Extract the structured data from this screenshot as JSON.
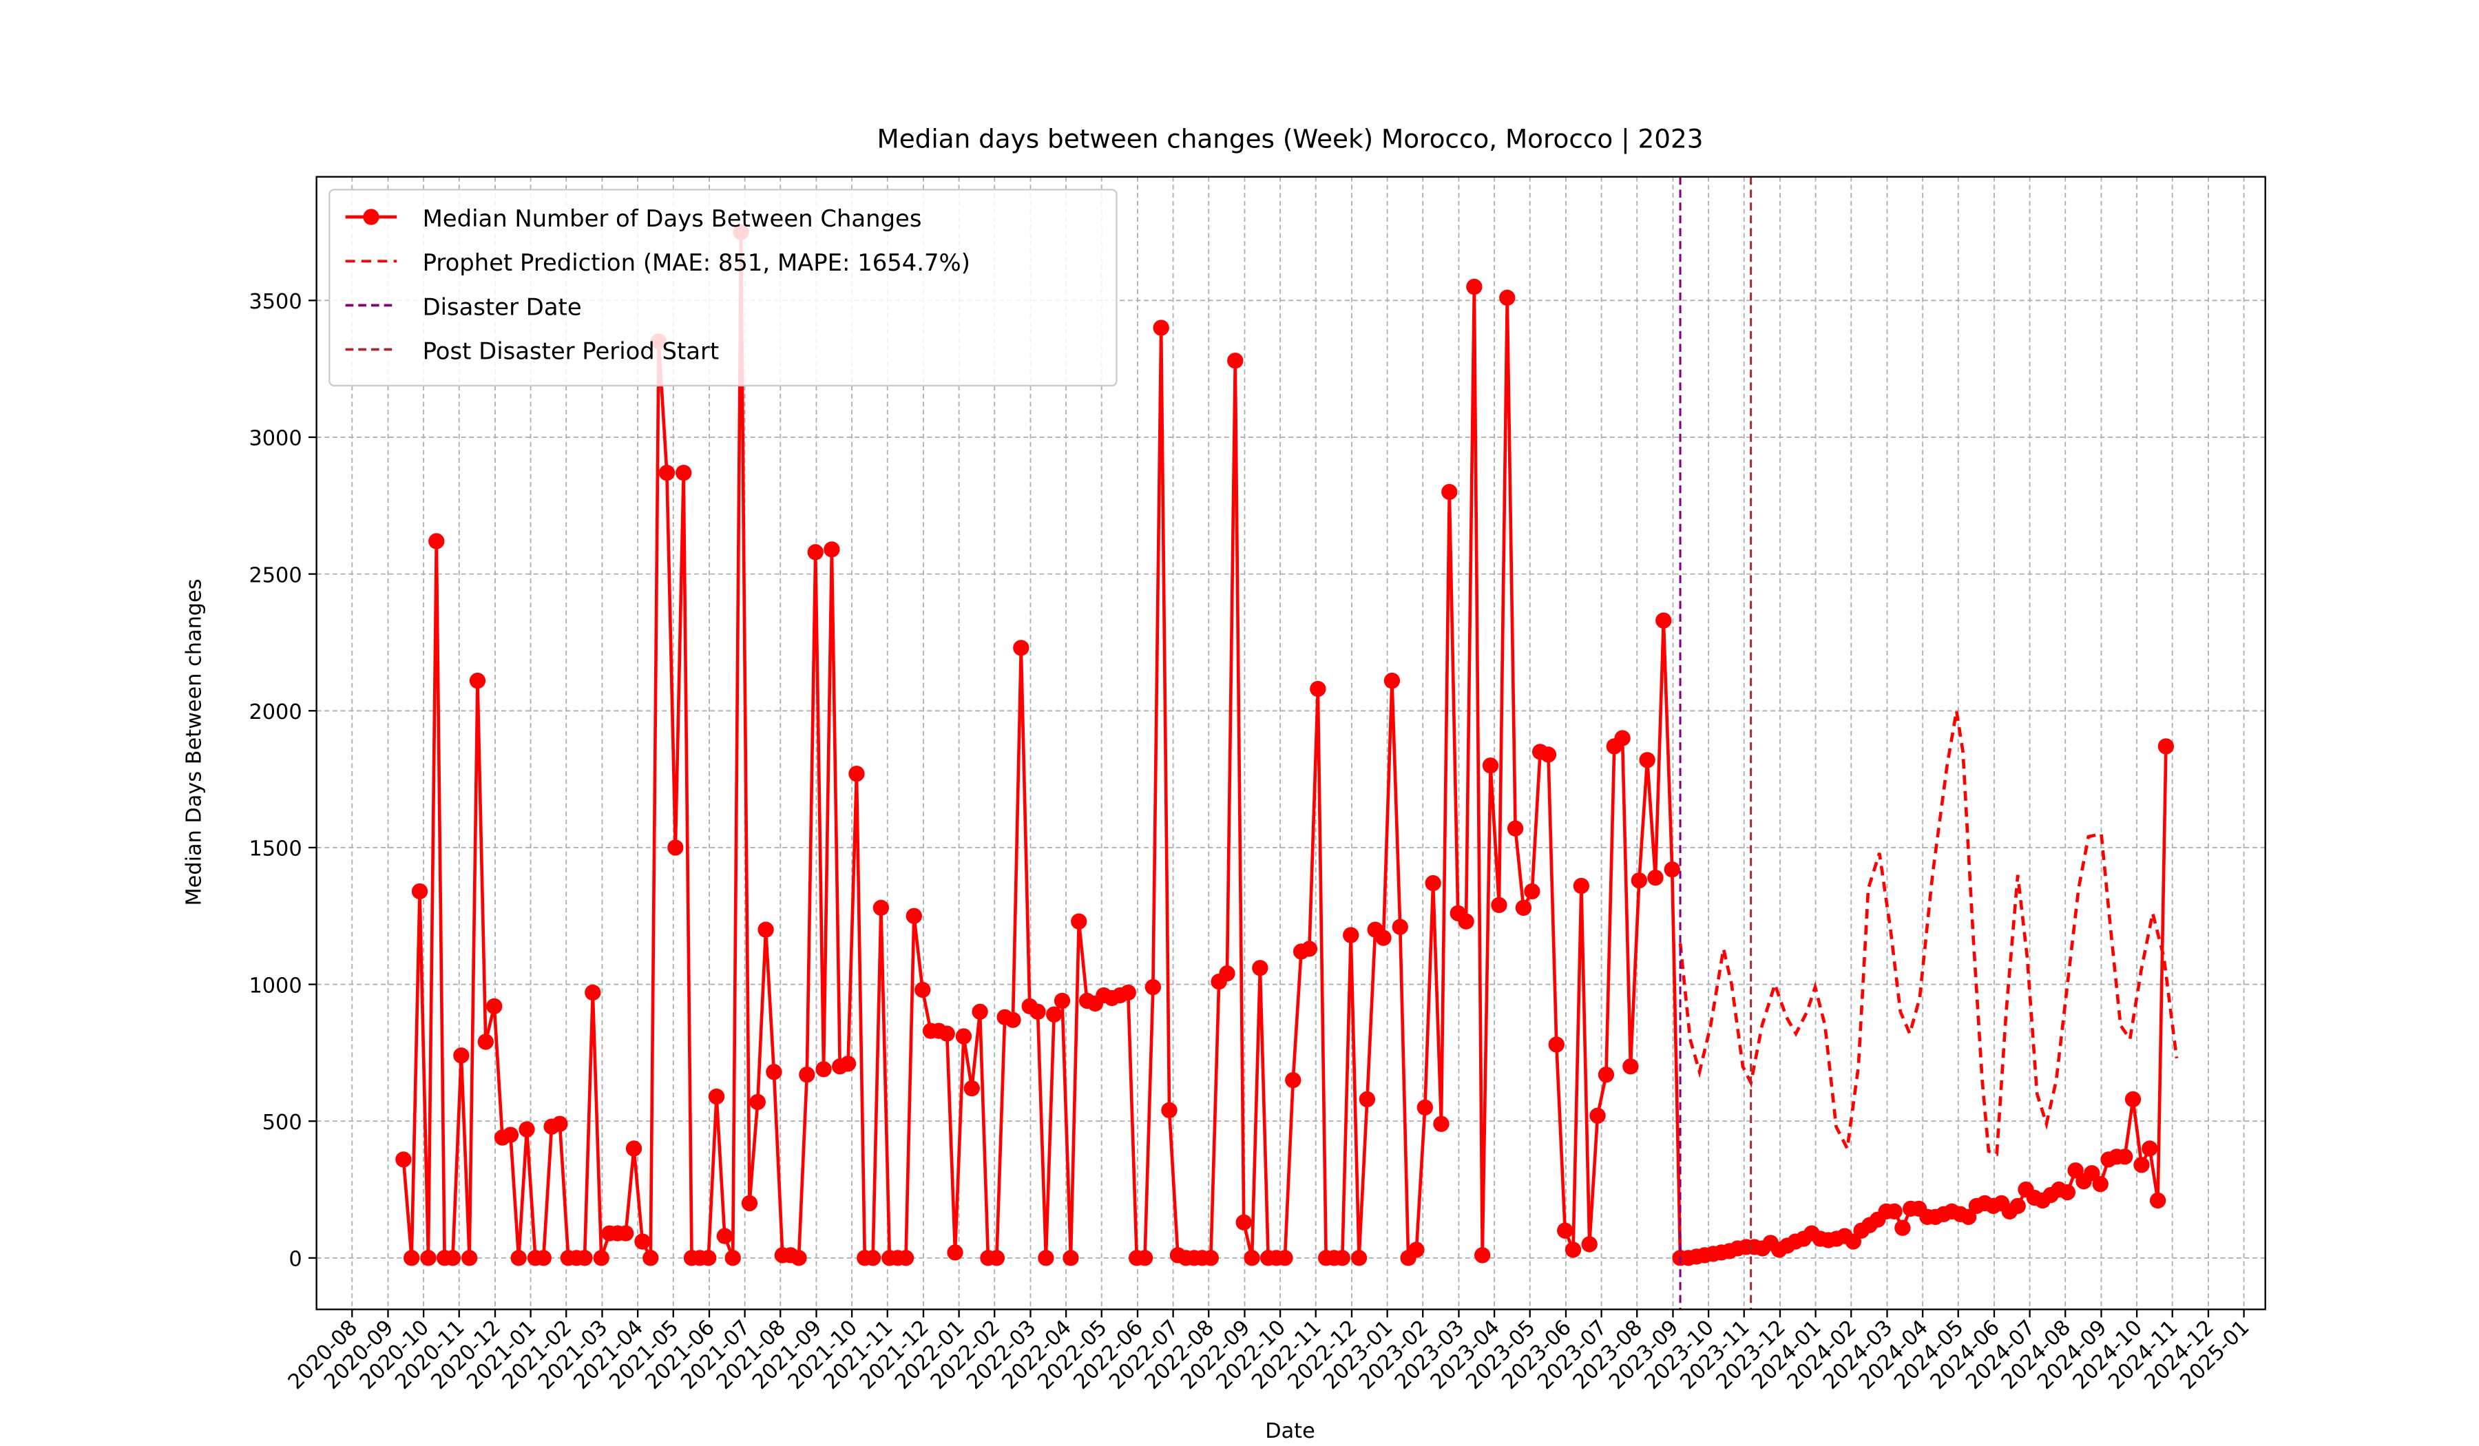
{
  "chart_data": {
    "type": "line",
    "title": "Median days between changes (Week) Morocco, Morocco | 2023",
    "x_label": "Date",
    "y_label": "Median Days Between changes",
    "xlim": [
      2020.5,
      2025.05
    ],
    "ylim": [
      -188,
      3952
    ],
    "grid": true,
    "legend": "upper left",
    "xticks": [
      {
        "value": 2020.583,
        "label": "2020-08"
      },
      {
        "value": 2020.667,
        "label": "2020-09"
      },
      {
        "value": 2020.75,
        "label": "2020-10"
      },
      {
        "value": 2020.833,
        "label": "2020-11"
      },
      {
        "value": 2020.917,
        "label": "2020-12"
      },
      {
        "value": 2021.0,
        "label": "2021-01"
      },
      {
        "value": 2021.083,
        "label": "2021-02"
      },
      {
        "value": 2021.167,
        "label": "2021-03"
      },
      {
        "value": 2021.25,
        "label": "2021-04"
      },
      {
        "value": 2021.333,
        "label": "2021-05"
      },
      {
        "value": 2021.417,
        "label": "2021-06"
      },
      {
        "value": 2021.5,
        "label": "2021-07"
      },
      {
        "value": 2021.583,
        "label": "2021-08"
      },
      {
        "value": 2021.667,
        "label": "2021-09"
      },
      {
        "value": 2021.75,
        "label": "2021-10"
      },
      {
        "value": 2021.833,
        "label": "2021-11"
      },
      {
        "value": 2021.917,
        "label": "2021-12"
      },
      {
        "value": 2022.0,
        "label": "2022-01"
      },
      {
        "value": 2022.083,
        "label": "2022-02"
      },
      {
        "value": 2022.167,
        "label": "2022-03"
      },
      {
        "value": 2022.25,
        "label": "2022-04"
      },
      {
        "value": 2022.333,
        "label": "2022-05"
      },
      {
        "value": 2022.417,
        "label": "2022-06"
      },
      {
        "value": 2022.5,
        "label": "2022-07"
      },
      {
        "value": 2022.583,
        "label": "2022-08"
      },
      {
        "value": 2022.667,
        "label": "2022-09"
      },
      {
        "value": 2022.75,
        "label": "2022-10"
      },
      {
        "value": 2022.833,
        "label": "2022-11"
      },
      {
        "value": 2022.917,
        "label": "2022-12"
      },
      {
        "value": 2023.0,
        "label": "2023-01"
      },
      {
        "value": 2023.083,
        "label": "2023-02"
      },
      {
        "value": 2023.167,
        "label": "2023-03"
      },
      {
        "value": 2023.25,
        "label": "2023-04"
      },
      {
        "value": 2023.333,
        "label": "2023-05"
      },
      {
        "value": 2023.417,
        "label": "2023-06"
      },
      {
        "value": 2023.5,
        "label": "2023-07"
      },
      {
        "value": 2023.583,
        "label": "2023-08"
      },
      {
        "value": 2023.667,
        "label": "2023-09"
      },
      {
        "value": 2023.75,
        "label": "2023-10"
      },
      {
        "value": 2023.833,
        "label": "2023-11"
      },
      {
        "value": 2023.917,
        "label": "2023-12"
      },
      {
        "value": 2024.0,
        "label": "2024-01"
      },
      {
        "value": 2024.083,
        "label": "2024-02"
      },
      {
        "value": 2024.167,
        "label": "2024-03"
      },
      {
        "value": 2024.25,
        "label": "2024-04"
      },
      {
        "value": 2024.333,
        "label": "2024-05"
      },
      {
        "value": 2024.417,
        "label": "2024-06"
      },
      {
        "value": 2024.5,
        "label": "2024-07"
      },
      {
        "value": 2024.583,
        "label": "2024-08"
      },
      {
        "value": 2024.667,
        "label": "2024-09"
      },
      {
        "value": 2024.75,
        "label": "2024-10"
      },
      {
        "value": 2024.833,
        "label": "2024-11"
      },
      {
        "value": 2024.917,
        "label": "2024-12"
      },
      {
        "value": 2025.0,
        "label": "2025-01"
      }
    ],
    "yticks": [
      0,
      500,
      1000,
      1500,
      2000,
      2500,
      3000,
      3500
    ],
    "series": [
      {
        "name": "Median Number of Days Between Changes",
        "color": "#ff0000",
        "style": "solid-marker",
        "x": [
          2020.703,
          2020.722,
          2020.741,
          2020.761,
          2020.78,
          2020.799,
          2020.818,
          2020.838,
          2020.857,
          2020.876,
          2020.895,
          2020.915,
          2020.934,
          2020.953,
          2020.972,
          2020.991,
          2021.011,
          2021.03,
          2021.049,
          2021.068,
          2021.088,
          2021.107,
          2021.126,
          2021.145,
          2021.165,
          2021.184,
          2021.203,
          2021.222,
          2021.241,
          2021.261,
          2021.28,
          2021.299,
          2021.318,
          2021.338,
          2021.357,
          2021.376,
          2021.395,
          2021.415,
          2021.434,
          2021.453,
          2021.472,
          2021.491,
          2021.511,
          2021.53,
          2021.549,
          2021.568,
          2021.588,
          2021.607,
          2021.626,
          2021.645,
          2021.665,
          2021.684,
          2021.703,
          2021.722,
          2021.741,
          2021.761,
          2021.78,
          2021.799,
          2021.818,
          2021.838,
          2021.857,
          2021.876,
          2021.895,
          2021.915,
          2021.934,
          2021.953,
          2021.972,
          2021.991,
          2022.011,
          2022.03,
          2022.049,
          2022.068,
          2022.088,
          2022.107,
          2022.126,
          2022.145,
          2022.165,
          2022.184,
          2022.203,
          2022.222,
          2022.241,
          2022.261,
          2022.28,
          2022.299,
          2022.318,
          2022.338,
          2022.357,
          2022.376,
          2022.395,
          2022.415,
          2022.434,
          2022.453,
          2022.472,
          2022.491,
          2022.511,
          2022.53,
          2022.549,
          2022.568,
          2022.588,
          2022.607,
          2022.626,
          2022.645,
          2022.665,
          2022.684,
          2022.703,
          2022.722,
          2022.741,
          2022.761,
          2022.78,
          2022.799,
          2022.818,
          2022.838,
          2022.857,
          2022.876,
          2022.895,
          2022.915,
          2022.934,
          2022.953,
          2022.972,
          2022.991,
          2023.011,
          2023.03,
          2023.049,
          2023.068,
          2023.088,
          2023.107,
          2023.126,
          2023.145,
          2023.165,
          2023.184,
          2023.203,
          2023.222,
          2023.241,
          2023.261,
          2023.28,
          2023.299,
          2023.318,
          2023.338,
          2023.357,
          2023.376,
          2023.395,
          2023.415,
          2023.434,
          2023.453,
          2023.472,
          2023.491,
          2023.511,
          2023.53,
          2023.549,
          2023.568,
          2023.588,
          2023.607,
          2023.626,
          2023.645,
          2023.665,
          2023.684,
          2023.703,
          2023.722,
          2023.741,
          2023.761,
          2023.78,
          2023.799,
          2023.818,
          2023.838,
          2023.857,
          2023.876,
          2023.895,
          2023.915,
          2023.934,
          2023.953,
          2023.972,
          2023.991,
          2024.011,
          2024.03,
          2024.049,
          2024.068,
          2024.088,
          2024.107,
          2024.126,
          2024.145,
          2024.165,
          2024.184,
          2024.203,
          2024.222,
          2024.241,
          2024.261,
          2024.28,
          2024.299,
          2024.318,
          2024.338,
          2024.357,
          2024.376,
          2024.395,
          2024.415,
          2024.434,
          2024.453,
          2024.472,
          2024.491,
          2024.511,
          2024.53,
          2024.549,
          2024.568,
          2024.588,
          2024.607,
          2024.626,
          2024.645,
          2024.665,
          2024.684,
          2024.703,
          2024.722,
          2024.741,
          2024.761,
          2024.78,
          2024.799,
          2024.818
        ],
        "values": [
          360,
          0,
          1340,
          0,
          2620,
          0,
          0,
          740,
          0,
          2110,
          790,
          920,
          440,
          450,
          0,
          470,
          0,
          0,
          480,
          490,
          0,
          0,
          0,
          970,
          0,
          90,
          90,
          90,
          400,
          60,
          0,
          3350,
          2870,
          1500,
          2870,
          0,
          0,
          0,
          590,
          80,
          0,
          3750,
          200,
          570,
          1200,
          680,
          10,
          10,
          0,
          670,
          2580,
          690,
          2590,
          700,
          710,
          1770,
          0,
          0,
          1280,
          0,
          0,
          0,
          1250,
          980,
          830,
          830,
          820,
          20,
          810,
          620,
          900,
          0,
          0,
          880,
          870,
          2230,
          920,
          900,
          0,
          890,
          940,
          0,
          1230,
          940,
          930,
          960,
          950,
          960,
          970,
          0,
          0,
          990,
          3400,
          540,
          10,
          0,
          0,
          0,
          0,
          1010,
          1040,
          3280,
          130,
          0,
          1060,
          0,
          0,
          0,
          650,
          1120,
          1130,
          2080,
          0,
          0,
          0,
          1180,
          0,
          580,
          1200,
          1170,
          2110,
          1210,
          0,
          30,
          550,
          1370,
          490,
          2800,
          1260,
          1230,
          3550,
          10,
          1800,
          1290,
          3510,
          1570,
          1280,
          1340,
          1850,
          1840,
          780,
          100,
          30,
          1360,
          50,
          520,
          670,
          1870,
          1900,
          700,
          1380,
          1820,
          1390,
          2330,
          1420,
          0,
          0,
          5,
          10,
          15,
          20,
          25,
          35,
          40,
          40,
          35,
          55,
          30,
          45,
          60,
          70,
          90,
          70,
          65,
          70,
          80,
          60,
          100,
          120,
          140,
          170,
          170,
          110,
          180,
          180,
          150,
          150,
          160,
          170,
          160,
          150,
          190,
          200,
          190,
          200,
          170,
          190,
          250,
          220,
          210,
          230,
          250,
          240,
          320,
          280,
          310,
          270,
          360,
          370,
          370,
          580,
          340,
          400,
          210,
          1870
        ]
      },
      {
        "name": "Prophet Prediction (MAE: 851, MAPE: 1654.7%)",
        "color": "#ff0000",
        "style": "dashed",
        "x": [
          2023.684,
          2023.707,
          2023.729,
          2023.755,
          2023.785,
          2023.804,
          2023.83,
          2023.849,
          2023.875,
          2023.905,
          2023.932,
          2023.954,
          2023.98,
          2023.999,
          2024.022,
          2024.048,
          2024.074,
          2024.1,
          2024.123,
          2024.149,
          2024.175,
          2024.198,
          2024.22,
          2024.243,
          2024.273,
          2024.307,
          2024.329,
          2024.344,
          2024.367,
          2024.389,
          2024.404,
          2024.423,
          2024.445,
          2024.472,
          2024.494,
          2024.517,
          2024.539,
          2024.562,
          2024.588,
          2024.614,
          2024.637,
          2024.667,
          2024.689,
          2024.712,
          2024.734,
          2024.76,
          2024.787,
          2024.813,
          2024.843
        ],
        "values": [
          1150,
          800,
          680,
          850,
          1130,
          1000,
          700,
          640,
          850,
          1000,
          880,
          820,
          900,
          990,
          850,
          480,
          400,
          700,
          1350,
          1480,
          1200,
          900,
          820,
          950,
          1400,
          1800,
          2000,
          1850,
          1200,
          650,
          390,
          380,
          900,
          1400,
          1100,
          600,
          490,
          650,
          1000,
          1350,
          1540,
          1550,
          1200,
          850,
          800,
          1050,
          1260,
          1100,
          730
        ]
      }
    ],
    "vlines": [
      {
        "name": "Disaster Date",
        "x": 2023.684,
        "color": "#800080"
      },
      {
        "name": "Post Disaster Period Start",
        "x": 2023.849,
        "color": "#a52a2a"
      }
    ]
  }
}
